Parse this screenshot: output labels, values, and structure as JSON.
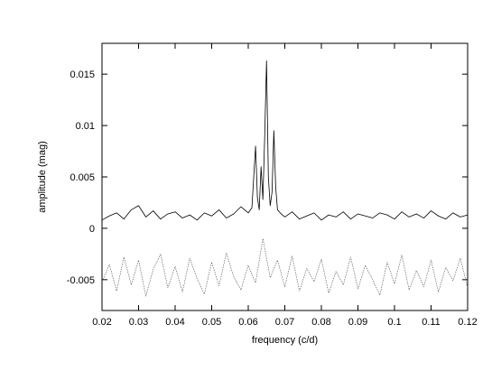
{
  "chart_data": {
    "type": "line",
    "title": "",
    "xlabel": "frequency (c/d)",
    "ylabel": "amplitude (mag)",
    "xlim": [
      0.02,
      0.12
    ],
    "ylim": [
      -0.008,
      0.018
    ],
    "x_ticks": [
      0.02,
      0.03,
      0.04,
      0.05,
      0.06,
      0.07,
      0.08,
      0.09,
      0.1,
      0.11,
      0.12
    ],
    "x_tick_labels": [
      "0.02",
      "0.03",
      "0.04",
      "0.05",
      "0.06",
      "0.07",
      "0.08",
      "0.09",
      "0.1",
      "0.11",
      "0.12"
    ],
    "y_ticks": [
      -0.005,
      0,
      0.005,
      0.01,
      0.015
    ],
    "y_tick_labels": [
      "-0.005",
      "0",
      "0.005",
      "0.01",
      "0.015"
    ],
    "grid": false,
    "legend": "none",
    "series": [
      {
        "style": "solid",
        "color": "#000000",
        "x": [
          0.02,
          0.022,
          0.024,
          0.026,
          0.028,
          0.03,
          0.032,
          0.034,
          0.036,
          0.038,
          0.04,
          0.042,
          0.044,
          0.046,
          0.048,
          0.05,
          0.052,
          0.054,
          0.056,
          0.058,
          0.06,
          0.061,
          0.062,
          0.0625,
          0.063,
          0.0635,
          0.064,
          0.0645,
          0.065,
          0.0655,
          0.066,
          0.0665,
          0.067,
          0.0675,
          0.068,
          0.069,
          0.07,
          0.072,
          0.074,
          0.076,
          0.078,
          0.08,
          0.082,
          0.084,
          0.086,
          0.088,
          0.09,
          0.092,
          0.094,
          0.096,
          0.098,
          0.1,
          0.102,
          0.104,
          0.106,
          0.108,
          0.11,
          0.112,
          0.114,
          0.116,
          0.118,
          0.12
        ],
        "y": [
          0.0008,
          0.0012,
          0.0015,
          0.0009,
          0.0018,
          0.0022,
          0.0011,
          0.0017,
          0.0009,
          0.0014,
          0.0016,
          0.001,
          0.0013,
          0.0008,
          0.0015,
          0.0012,
          0.0018,
          0.001,
          0.0014,
          0.0021,
          0.0015,
          0.002,
          0.008,
          0.003,
          0.0018,
          0.006,
          0.0028,
          0.009,
          0.0163,
          0.005,
          0.0022,
          0.0035,
          0.0095,
          0.004,
          0.0018,
          0.0014,
          0.0011,
          0.0016,
          0.0009,
          0.0012,
          0.0015,
          0.0008,
          0.0013,
          0.0011,
          0.0016,
          0.0009,
          0.0014,
          0.0012,
          0.001,
          0.0015,
          0.0013,
          0.0009,
          0.0016,
          0.0011,
          0.0014,
          0.001,
          0.0017,
          0.0012,
          0.0009,
          0.0015,
          0.0011,
          0.0013
        ]
      },
      {
        "style": "dotted",
        "color": "#444444",
        "x": [
          0.02,
          0.022,
          0.024,
          0.026,
          0.028,
          0.03,
          0.032,
          0.034,
          0.036,
          0.038,
          0.04,
          0.042,
          0.044,
          0.046,
          0.048,
          0.05,
          0.052,
          0.054,
          0.056,
          0.058,
          0.06,
          0.062,
          0.064,
          0.066,
          0.068,
          0.07,
          0.072,
          0.074,
          0.076,
          0.078,
          0.08,
          0.082,
          0.084,
          0.086,
          0.088,
          0.09,
          0.092,
          0.094,
          0.096,
          0.098,
          0.1,
          0.102,
          0.104,
          0.106,
          0.108,
          0.11,
          0.112,
          0.114,
          0.116,
          0.118,
          0.12
        ],
        "y": [
          -0.0052,
          -0.0035,
          -0.0061,
          -0.0028,
          -0.0055,
          -0.0031,
          -0.0066,
          -0.004,
          -0.0025,
          -0.0058,
          -0.0037,
          -0.0062,
          -0.0029,
          -0.0049,
          -0.0064,
          -0.0033,
          -0.0056,
          -0.0024,
          -0.0047,
          -0.006,
          -0.0036,
          -0.0053,
          -0.001,
          -0.0048,
          -0.0031,
          -0.0057,
          -0.0027,
          -0.0061,
          -0.0039,
          -0.0052,
          -0.003,
          -0.0063,
          -0.0042,
          -0.0055,
          -0.0028,
          -0.0059,
          -0.0036,
          -0.005,
          -0.0065,
          -0.0033,
          -0.0054,
          -0.0026,
          -0.006,
          -0.0041,
          -0.0057,
          -0.0031,
          -0.0062,
          -0.0038,
          -0.0051,
          -0.0029,
          -0.0058
        ]
      }
    ]
  }
}
